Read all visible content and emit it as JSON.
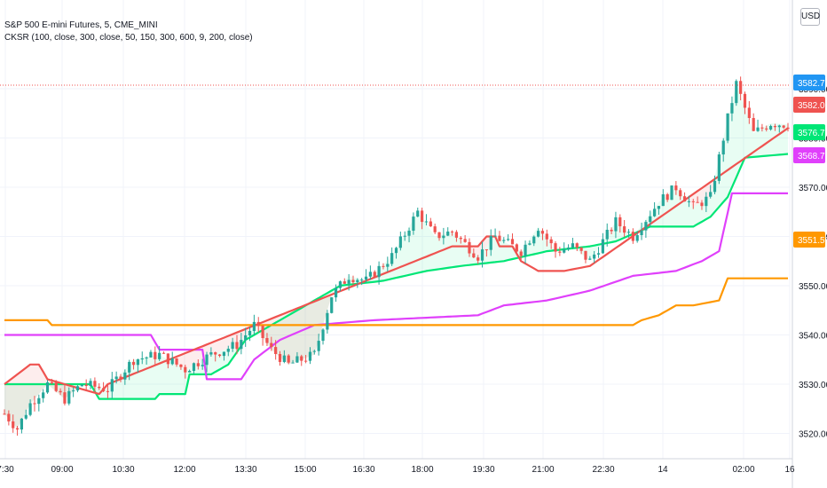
{
  "header": {
    "symbol_line": "S&P 500 E-mini Futures, 5, CME_MINI",
    "indicator_line": "CKSR (100, close, 300, close, 50, 150, 300, 600, 9, 200, close)"
  },
  "currency_button": "USD",
  "colors": {
    "up": "#26a69a",
    "down": "#ef5350",
    "green_line": "#00e676",
    "red_line": "#ef5350",
    "purple_line": "#e040fb",
    "orange_line": "#ff9800",
    "price_tag": "#2196f3"
  },
  "chart_data": {
    "type": "candlestick",
    "y_ticks": [
      "3590.00",
      "3580.00",
      "3570.00",
      "3560.00",
      "3550.00",
      "3540.00",
      "3530.00",
      "3520.00"
    ],
    "ylim": [
      3516,
      3596
    ],
    "x_ticks": [
      "7:30",
      "09:00",
      "10:30",
      "12:00",
      "13:30",
      "15:00",
      "16:30",
      "18:00",
      "19:30",
      "21:00",
      "22:30",
      "14",
      "02:00",
      "16"
    ],
    "price_labels": [
      {
        "value": "3582.75",
        "color": "#2196f3"
      },
      {
        "value": "3582.00",
        "color": "#ef5350"
      },
      {
        "value": "3576.75",
        "color": "#00e676"
      },
      {
        "value": "3568.75",
        "color": "#e040fb"
      },
      {
        "value": "3551.50",
        "color": "#ff9800"
      }
    ],
    "last_price": 3582.75,
    "price_path": [
      [
        0,
        3524
      ],
      [
        3,
        3521
      ],
      [
        6,
        3526
      ],
      [
        10,
        3530
      ],
      [
        14,
        3527
      ],
      [
        18,
        3530
      ],
      [
        24,
        3529
      ],
      [
        30,
        3535
      ],
      [
        36,
        3536
      ],
      [
        42,
        3533
      ],
      [
        48,
        3536
      ],
      [
        54,
        3538
      ],
      [
        58,
        3542
      ],
      [
        62,
        3537
      ],
      [
        66,
        3534
      ],
      [
        72,
        3536
      ],
      [
        76,
        3548
      ],
      [
        80,
        3552
      ],
      [
        84,
        3551
      ],
      [
        90,
        3556
      ],
      [
        96,
        3565
      ],
      [
        100,
        3560
      ],
      [
        104,
        3561
      ],
      [
        110,
        3556
      ],
      [
        114,
        3560
      ],
      [
        120,
        3557
      ],
      [
        124,
        3562
      ],
      [
        128,
        3557
      ],
      [
        132,
        3558
      ],
      [
        136,
        3555
      ],
      [
        142,
        3563
      ],
      [
        146,
        3560
      ],
      [
        152,
        3567
      ],
      [
        156,
        3570
      ],
      [
        160,
        3566
      ],
      [
        164,
        3568
      ],
      [
        168,
        3584
      ],
      [
        170,
        3591
      ],
      [
        174,
        3581
      ],
      [
        178,
        3583
      ],
      [
        182,
        3582.75
      ]
    ],
    "series": [
      {
        "name": "green",
        "color": "#00e676",
        "points": [
          [
            0,
            3530
          ],
          [
            20,
            3530
          ],
          [
            22,
            3527
          ],
          [
            35,
            3527
          ],
          [
            36,
            3528
          ],
          [
            42,
            3528
          ],
          [
            43,
            3532
          ],
          [
            48,
            3532
          ],
          [
            52,
            3534
          ],
          [
            56,
            3539
          ],
          [
            60,
            3541
          ],
          [
            66,
            3544
          ],
          [
            70,
            3546
          ],
          [
            78,
            3550
          ],
          [
            88,
            3551
          ],
          [
            98,
            3553
          ],
          [
            106,
            3554
          ],
          [
            116,
            3555
          ],
          [
            126,
            3557
          ],
          [
            136,
            3558
          ],
          [
            142,
            3559
          ],
          [
            150,
            3562
          ],
          [
            160,
            3562
          ],
          [
            164,
            3564
          ],
          [
            168,
            3568
          ],
          [
            172,
            3576
          ],
          [
            182,
            3576.75
          ]
        ]
      },
      {
        "name": "purple",
        "color": "#e040fb",
        "points": [
          [
            0,
            3540
          ],
          [
            34,
            3540
          ],
          [
            36,
            3537
          ],
          [
            46,
            3537
          ],
          [
            47,
            3531
          ],
          [
            55,
            3531
          ],
          [
            58,
            3535
          ],
          [
            64,
            3539
          ],
          [
            72,
            3542
          ],
          [
            86,
            3543
          ],
          [
            110,
            3544
          ],
          [
            116,
            3546
          ],
          [
            126,
            3547
          ],
          [
            136,
            3549
          ],
          [
            146,
            3552
          ],
          [
            156,
            3553
          ],
          [
            162,
            3555
          ],
          [
            166,
            3557
          ],
          [
            169,
            3568.75
          ],
          [
            182,
            3568.75
          ]
        ]
      },
      {
        "name": "orange",
        "color": "#ff9800",
        "points": [
          [
            0,
            3543
          ],
          [
            10,
            3543
          ],
          [
            11,
            3542
          ],
          [
            60,
            3542
          ],
          [
            100,
            3542
          ],
          [
            146,
            3542
          ],
          [
            148,
            3543
          ],
          [
            152,
            3544
          ],
          [
            156,
            3546
          ],
          [
            160,
            3546
          ],
          [
            166,
            3547
          ],
          [
            168,
            3551.5
          ],
          [
            182,
            3551.5
          ]
        ]
      },
      {
        "name": "red",
        "color": "#ef5350",
        "points": [
          [
            0,
            3530
          ],
          [
            6,
            3534
          ],
          [
            8,
            3534
          ],
          [
            10,
            3531
          ],
          [
            22,
            3528
          ],
          [
            24,
            3530
          ],
          [
            104,
            3558
          ],
          [
            110,
            3558
          ],
          [
            112,
            3560
          ],
          [
            114,
            3560
          ],
          [
            115,
            3558
          ],
          [
            118,
            3558
          ],
          [
            120,
            3555
          ],
          [
            124,
            3553
          ],
          [
            130,
            3553
          ],
          [
            136,
            3554
          ],
          [
            182,
            3582
          ]
        ]
      }
    ]
  }
}
